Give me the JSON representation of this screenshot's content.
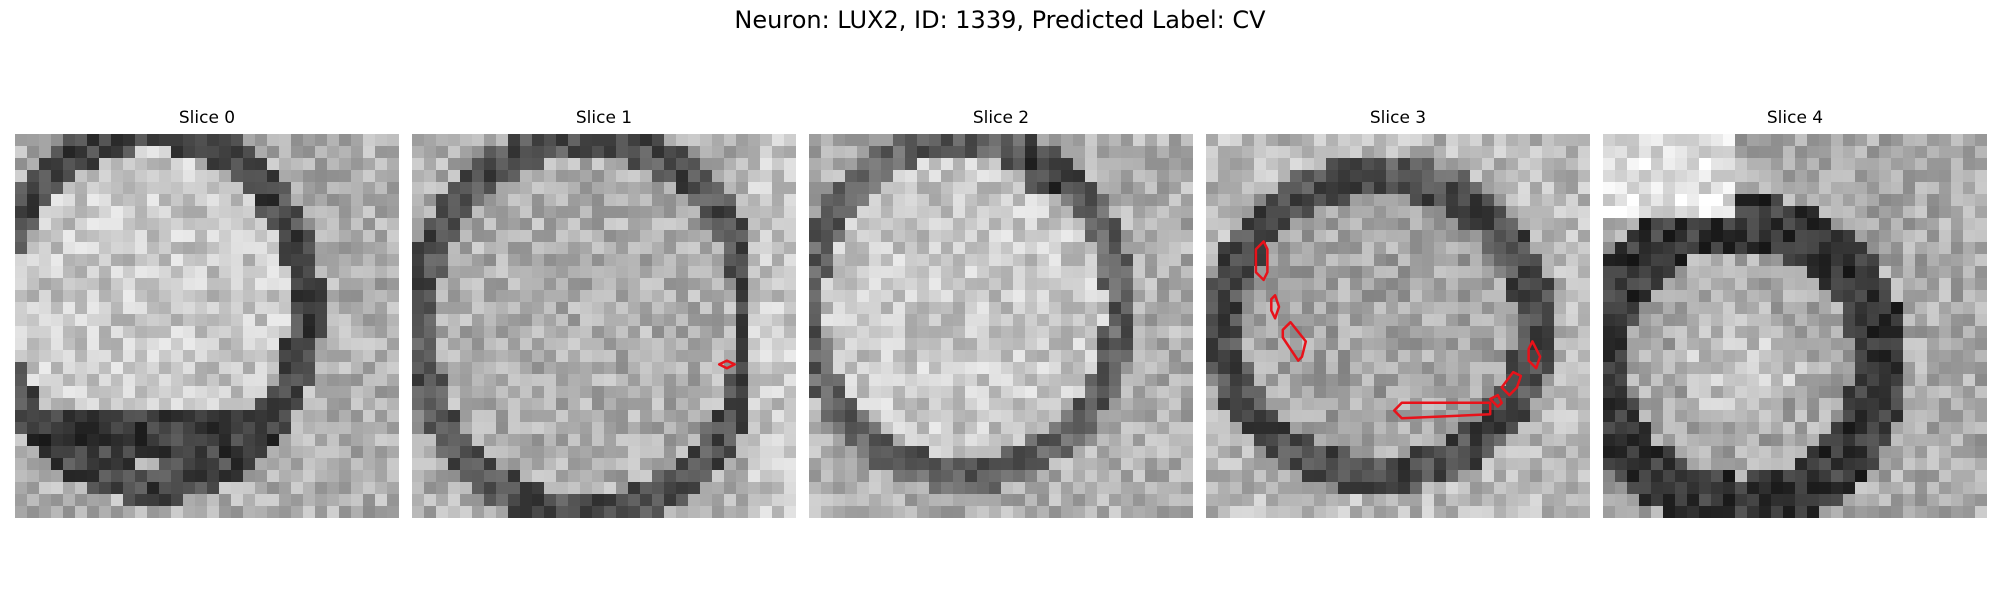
{
  "figure": {
    "suptitle": "Neuron: LUX2, ID: 1339, Predicted Label: CV"
  },
  "panels": [
    {
      "title": "Slice 0",
      "seed": 11,
      "kind": "soma-right-edge",
      "contours": []
    },
    {
      "title": "Slice 1",
      "seed": 23,
      "kind": "soma-speckled",
      "contours": [
        {
          "pts": [
            [
              0.82,
              0.59
            ],
            [
              0.84,
              0.6
            ],
            [
              0.82,
              0.61
            ],
            [
              0.8,
              0.6
            ]
          ]
        }
      ]
    },
    {
      "title": "Slice 2",
      "seed": 37,
      "kind": "soma-bright",
      "contours": []
    },
    {
      "title": "Slice 3",
      "seed": 41,
      "kind": "soma-ring",
      "contours": [
        {
          "pts": [
            [
              0.13,
              0.3
            ],
            [
              0.15,
              0.28
            ],
            [
              0.16,
              0.3
            ],
            [
              0.16,
              0.36
            ],
            [
              0.15,
              0.38
            ],
            [
              0.13,
              0.36
            ]
          ]
        },
        {
          "pts": [
            [
              0.17,
              0.43
            ],
            [
              0.18,
              0.42
            ],
            [
              0.19,
              0.45
            ],
            [
              0.18,
              0.48
            ],
            [
              0.17,
              0.46
            ]
          ]
        },
        {
          "pts": [
            [
              0.2,
              0.51
            ],
            [
              0.22,
              0.49
            ],
            [
              0.26,
              0.54
            ],
            [
              0.25,
              0.58
            ],
            [
              0.24,
              0.59
            ],
            [
              0.2,
              0.53
            ]
          ]
        },
        {
          "pts": [
            [
              0.49,
              0.72
            ],
            [
              0.51,
              0.7
            ],
            [
              0.74,
              0.7
            ],
            [
              0.74,
              0.73
            ],
            [
              0.51,
              0.74
            ]
          ]
        },
        {
          "pts": [
            [
              0.74,
              0.69
            ],
            [
              0.76,
              0.68
            ],
            [
              0.77,
              0.7
            ],
            [
              0.76,
              0.71
            ]
          ]
        },
        {
          "pts": [
            [
              0.77,
              0.66
            ],
            [
              0.8,
              0.62
            ],
            [
              0.82,
              0.63
            ],
            [
              0.81,
              0.66
            ],
            [
              0.79,
              0.68
            ]
          ]
        },
        {
          "pts": [
            [
              0.84,
              0.56
            ],
            [
              0.85,
              0.54
            ],
            [
              0.87,
              0.58
            ],
            [
              0.86,
              0.61
            ],
            [
              0.84,
              0.59
            ]
          ]
        }
      ]
    },
    {
      "title": "Slice 4",
      "seed": 53,
      "kind": "soma-dark-ring",
      "contours": []
    }
  ],
  "colors": {
    "contour": "#e8121a"
  }
}
